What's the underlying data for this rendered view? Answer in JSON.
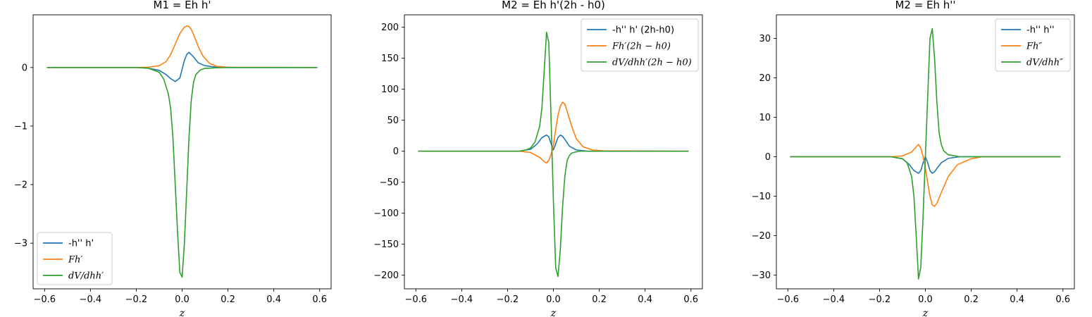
{
  "colors": {
    "series1": "#1f77b4",
    "series2": "#ff7f0e",
    "series3": "#2ca02c"
  },
  "chart_data": [
    {
      "type": "line",
      "title": "M1 = Eh h'",
      "xlabel": "z",
      "xlim": [
        -0.65,
        0.65
      ],
      "ylim": [
        -3.78,
        0.9
      ],
      "xticks": [
        -0.6,
        -0.4,
        -0.2,
        0.0,
        0.2,
        0.4,
        0.6
      ],
      "xtick_labels": [
        "−0.6",
        "−0.4",
        "−0.2",
        "0.0",
        "0.2",
        "0.4",
        "0.6"
      ],
      "yticks": [
        0,
        -1,
        -2,
        -3
      ],
      "ytick_labels": [
        "0",
        "−1",
        "−2",
        "−3"
      ],
      "legend_position": "lower-left",
      "series": [
        {
          "name": "-h'' h'",
          "color": "#1f77b4",
          "x": [
            -0.59,
            -0.2,
            -0.15,
            -0.1,
            -0.07,
            -0.05,
            -0.03,
            -0.01,
            0.0,
            0.01,
            0.02,
            0.03,
            0.05,
            0.07,
            0.1,
            0.15,
            0.2,
            0.59
          ],
          "y": [
            0,
            0,
            -0.01,
            -0.05,
            -0.12,
            -0.19,
            -0.24,
            -0.18,
            -0.03,
            0.12,
            0.22,
            0.26,
            0.18,
            0.08,
            0.03,
            0.005,
            0,
            0
          ]
        },
        {
          "name": "Fh′",
          "color": "#ff7f0e",
          "x": [
            -0.59,
            -0.2,
            -0.15,
            -0.1,
            -0.07,
            -0.05,
            -0.03,
            -0.01,
            0.01,
            0.02,
            0.03,
            0.04,
            0.05,
            0.07,
            0.09,
            0.12,
            0.15,
            0.2,
            0.59
          ],
          "y": [
            0,
            0,
            0.005,
            0.03,
            0.1,
            0.22,
            0.4,
            0.58,
            0.69,
            0.71,
            0.7,
            0.65,
            0.56,
            0.36,
            0.2,
            0.07,
            0.02,
            0.005,
            0
          ]
        },
        {
          "name": "dV/dhh′",
          "color": "#2ca02c",
          "x": [
            -0.59,
            -0.2,
            -0.15,
            -0.1,
            -0.08,
            -0.06,
            -0.05,
            -0.04,
            -0.03,
            -0.02,
            -0.01,
            0.0,
            0.01,
            0.02,
            0.03,
            0.04,
            0.05,
            0.06,
            0.08,
            0.1,
            0.15,
            0.2,
            0.59
          ],
          "y": [
            0,
            0,
            -0.01,
            -0.08,
            -0.2,
            -0.45,
            -0.7,
            -1.2,
            -2.0,
            -2.8,
            -3.5,
            -3.58,
            -3.0,
            -2.1,
            -1.2,
            -0.55,
            -0.25,
            -0.12,
            -0.04,
            -0.015,
            -0.005,
            0,
            0
          ]
        }
      ]
    },
    {
      "type": "line",
      "title": "M2 = Eh h'(2h - h0)",
      "xlabel": "z",
      "xlim": [
        -0.65,
        0.65
      ],
      "ylim": [
        -222,
        220
      ],
      "xticks": [
        -0.6,
        -0.4,
        -0.2,
        0.0,
        0.2,
        0.4,
        0.6
      ],
      "xtick_labels": [
        "−0.6",
        "−0.4",
        "−0.2",
        "0.0",
        "0.2",
        "0.4",
        "0.6"
      ],
      "yticks": [
        200,
        150,
        100,
        50,
        0,
        -50,
        -100,
        -150,
        -200
      ],
      "ytick_labels": [
        "200",
        "150",
        "100",
        "50",
        "0",
        "−50",
        "−100",
        "−150",
        "−200"
      ],
      "legend_position": "upper-right",
      "series": [
        {
          "name": "-h'' h' (2h-h0)",
          "color": "#1f77b4",
          "x": [
            -0.59,
            -0.15,
            -0.1,
            -0.07,
            -0.05,
            -0.03,
            -0.02,
            -0.01,
            0.0,
            0.01,
            0.02,
            0.03,
            0.04,
            0.05,
            0.07,
            0.1,
            0.15,
            0.59
          ],
          "y": [
            0,
            0,
            3,
            12,
            22,
            26,
            23,
            12,
            2,
            12,
            22,
            26,
            24,
            19,
            8,
            2,
            0,
            0
          ]
        },
        {
          "name": "Fh′(2h − h0)",
          "color": "#ff7f0e",
          "x": [
            -0.59,
            -0.15,
            -0.1,
            -0.06,
            -0.04,
            -0.03,
            -0.02,
            -0.01,
            0.0,
            0.01,
            0.02,
            0.03,
            0.04,
            0.05,
            0.06,
            0.08,
            0.1,
            0.13,
            0.17,
            0.22,
            0.59
          ],
          "y": [
            0,
            0,
            -2,
            -10,
            -17,
            -19,
            -15,
            -5,
            10,
            35,
            58,
            72,
            79,
            76,
            64,
            40,
            20,
            7,
            2,
            0.5,
            0
          ]
        },
        {
          "name": "dV/dhh′(2h − h0)",
          "color": "#2ca02c",
          "x": [
            -0.59,
            -0.15,
            -0.12,
            -0.1,
            -0.08,
            -0.06,
            -0.05,
            -0.04,
            -0.03,
            -0.02,
            -0.01,
            0.0,
            0.01,
            0.02,
            0.03,
            0.04,
            0.05,
            0.06,
            0.07,
            0.08,
            0.1,
            0.12,
            0.15,
            0.59
          ],
          "y": [
            0,
            0,
            2,
            5,
            15,
            40,
            70,
            130,
            192,
            175,
            50,
            -80,
            -188,
            -202,
            -160,
            -90,
            -40,
            -15,
            -7,
            -3,
            -1,
            0,
            0,
            0
          ]
        }
      ]
    },
    {
      "type": "line",
      "title": "M2 = Eh h''",
      "xlabel": "z",
      "xlim": [
        -0.65,
        0.65
      ],
      "ylim": [
        -33.5,
        36
      ],
      "xticks": [
        -0.6,
        -0.4,
        -0.2,
        0.0,
        0.2,
        0.4,
        0.6
      ],
      "xtick_labels": [
        "−0.6",
        "−0.4",
        "−0.2",
        "0.0",
        "0.2",
        "0.4",
        "0.6"
      ],
      "yticks": [
        30,
        20,
        10,
        0,
        -10,
        -20,
        -30
      ],
      "ytick_labels": [
        "30",
        "20",
        "10",
        "0",
        "−10",
        "−20",
        "−30"
      ],
      "legend_position": "upper-right",
      "series": [
        {
          "name": "-h'' h''",
          "color": "#1f77b4",
          "x": [
            -0.59,
            -0.15,
            -0.1,
            -0.07,
            -0.05,
            -0.03,
            -0.02,
            -0.01,
            0.0,
            0.01,
            0.02,
            0.03,
            0.04,
            0.05,
            0.07,
            0.1,
            0.15,
            0.59
          ],
          "y": [
            0,
            0,
            -0.5,
            -2,
            -3.5,
            -4.2,
            -3.5,
            -1.5,
            0,
            -1.5,
            -3.5,
            -4.2,
            -3.8,
            -3,
            -1.5,
            -0.4,
            0,
            0
          ]
        },
        {
          "name": "Fh″",
          "color": "#ff7f0e",
          "x": [
            -0.59,
            -0.15,
            -0.1,
            -0.06,
            -0.04,
            -0.03,
            -0.02,
            -0.01,
            0.0,
            0.01,
            0.02,
            0.03,
            0.04,
            0.05,
            0.07,
            0.1,
            0.14,
            0.2,
            0.25,
            0.59
          ],
          "y": [
            0,
            0,
            0.2,
            1.2,
            2.5,
            3.1,
            2.2,
            0,
            -3,
            -6.5,
            -10,
            -12.2,
            -12.6,
            -11.8,
            -9,
            -5,
            -2,
            -0.5,
            0,
            0
          ]
        },
        {
          "name": "dV/dhh″",
          "color": "#2ca02c",
          "x": [
            -0.59,
            -0.15,
            -0.1,
            -0.08,
            -0.06,
            -0.05,
            -0.04,
            -0.03,
            -0.02,
            -0.01,
            0.0,
            0.01,
            0.02,
            0.03,
            0.04,
            0.05,
            0.06,
            0.07,
            0.08,
            0.1,
            0.15,
            0.59
          ],
          "y": [
            0,
            0,
            -0.5,
            -1.5,
            -5,
            -10,
            -20,
            -31,
            -28,
            -15,
            0,
            15,
            30,
            32.5,
            25,
            14,
            6,
            3,
            1.5,
            0.5,
            0,
            0
          ]
        }
      ]
    }
  ]
}
